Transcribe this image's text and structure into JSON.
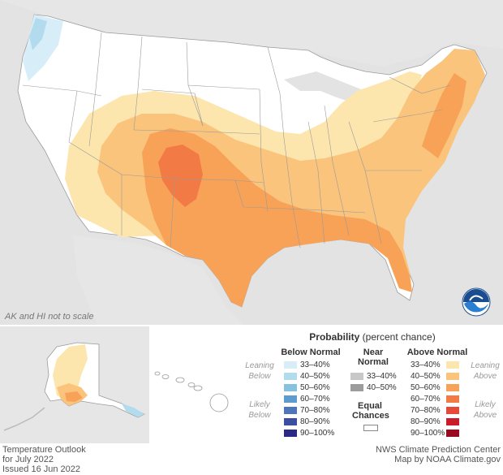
{
  "map": {
    "scale_note": "AK and HI not to scale",
    "logo_icon": "noaa-logo-icon"
  },
  "legend": {
    "title_bold": "Probability",
    "title_rest": " (percent chance)",
    "below_header": "Below Normal",
    "near_header_1": "Near",
    "near_header_2": "Normal",
    "above_header": "Above Normal",
    "leaning_1": "Leaning",
    "below_word": "Below",
    "above_word": "Above",
    "likely": "Likely",
    "equal_1": "Equal",
    "equal_2": "Chances",
    "below_ranges": [
      "33–40%",
      "40–50%",
      "50–60%",
      "60–70%",
      "70–80%",
      "80–90%",
      "90–100%"
    ],
    "below_colors": [
      "#d7eef8",
      "#b2dcee",
      "#85c2e0",
      "#5e9ccd",
      "#4f76b8",
      "#3c4ea1",
      "#2a2a86"
    ],
    "near_ranges": [
      "33–40%",
      "40–50%"
    ],
    "near_colors": [
      "#c8c8c8",
      "#9c9c9c"
    ],
    "above_ranges": [
      "33–40%",
      "40–50%",
      "50–60%",
      "60–70%",
      "70–80%",
      "80–90%",
      "90–100%"
    ],
    "above_colors": [
      "#fde6ad",
      "#fac47c",
      "#f8a258",
      "#f27b45",
      "#e5493a",
      "#c91d2c",
      "#990a1e"
    ]
  },
  "footer": {
    "left_1": "Temperature Outlook",
    "left_2": "for July 2022",
    "left_3": "Issued 16 Jun 2022",
    "right_1": "NWS Climate Prediction Center",
    "right_2": "Map by NOAA Climate.gov"
  }
}
